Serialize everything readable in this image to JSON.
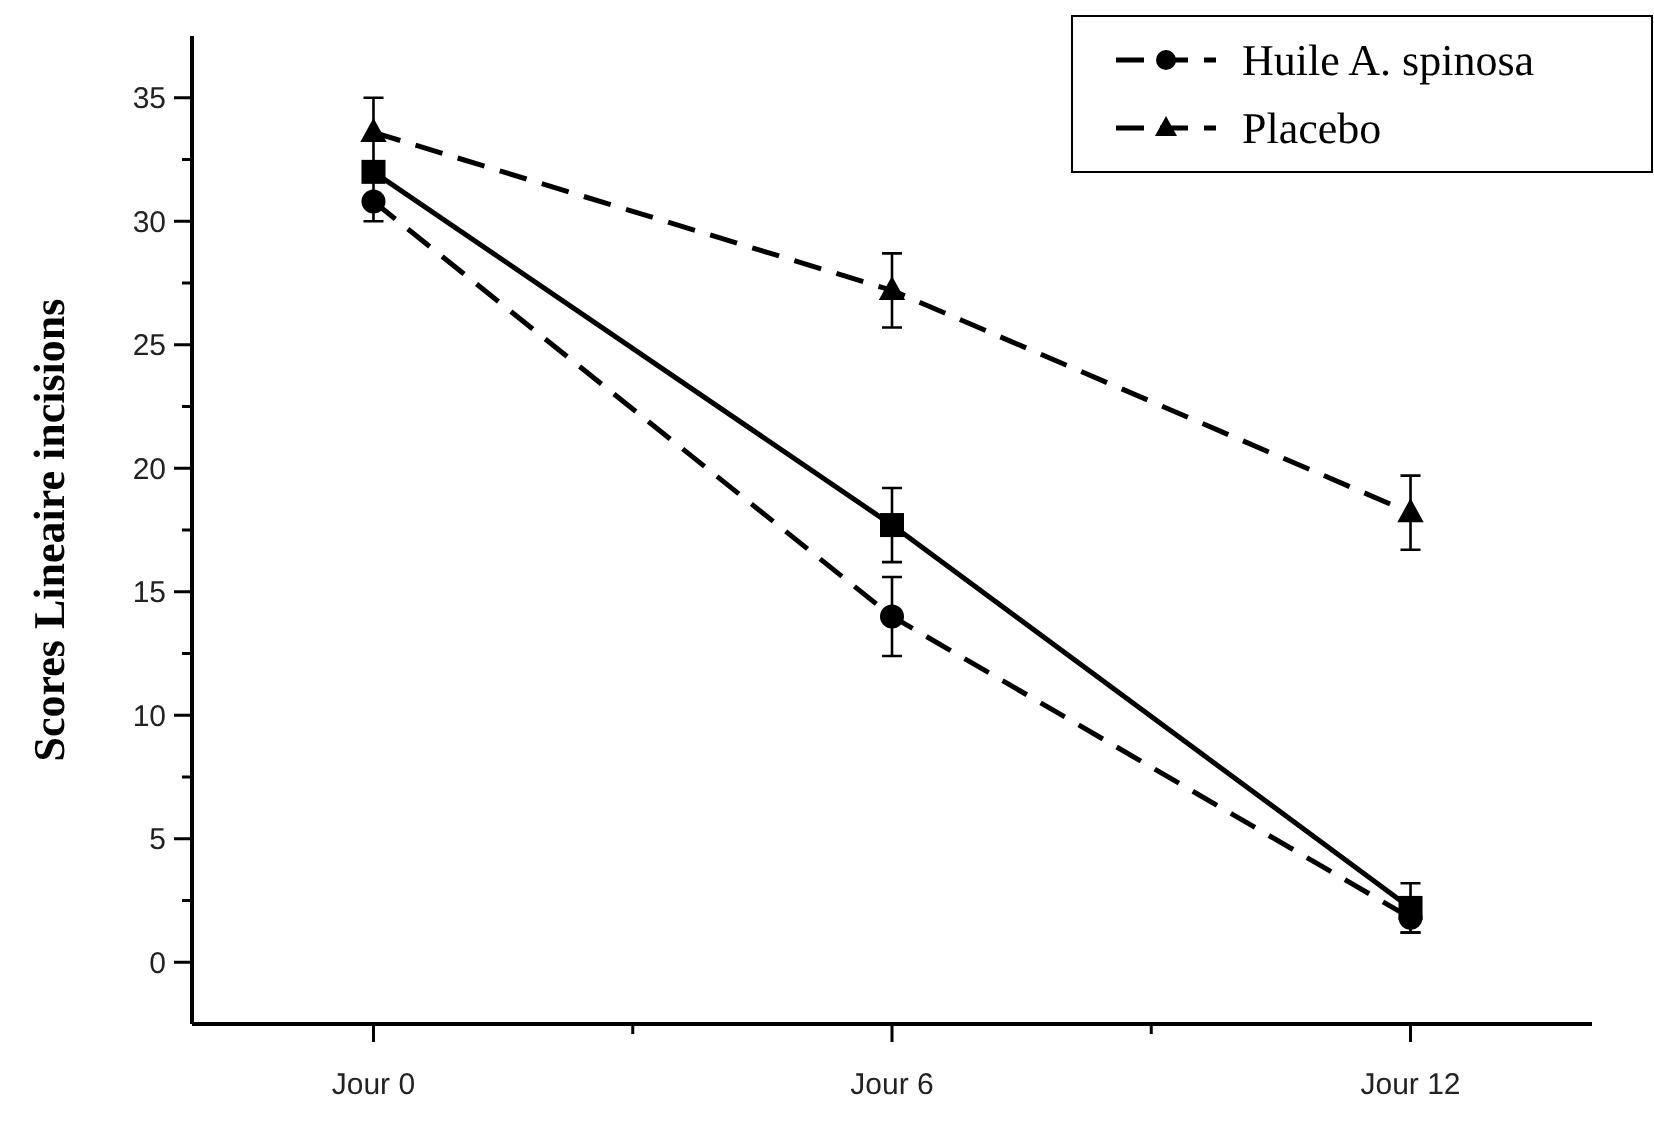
{
  "chart_data": {
    "type": "line",
    "ylabel": "Scores Lineaire incisions",
    "categories": [
      "Jour 0",
      "Jour 6",
      "Jour 12"
    ],
    "series": [
      {
        "color": "#000000",
        "values": [
          32,
          17.7,
          2.2
        ],
        "errors": [
          null,
          1.5,
          1
        ],
        "marker": "square",
        "line_style": "solid"
      },
      {
        "name": "Huile A. spinosa",
        "color": "#000000",
        "values": [
          30.8,
          14,
          1.8
        ],
        "errors": [
          0.8,
          1.6,
          0.6
        ],
        "marker": "circle",
        "line_style": "dashed"
      },
      {
        "name": "Placebo",
        "color": "#000000",
        "values": [
          33.6,
          27.2,
          18.2
        ],
        "errors": [
          1.4,
          1.5,
          1.5
        ],
        "marker": "triangle",
        "line_style": "dashed"
      }
    ],
    "ylim": [
      -2.5,
      37.5
    ],
    "yticks": [
      0,
      {
        "value": 2.5,
        "label": null
      },
      5,
      {
        "value": 7.5,
        "label": null
      },
      10,
      {
        "value": 12.5,
        "label": null
      },
      15,
      {
        "value": 17.5,
        "label": null
      },
      20,
      {
        "value": 22.5,
        "label": null
      },
      25,
      {
        "value": 27.5,
        "label": null
      },
      30,
      {
        "value": 32.5,
        "label": null
      },
      35
    ],
    "grid": false,
    "legend": "top right"
  }
}
